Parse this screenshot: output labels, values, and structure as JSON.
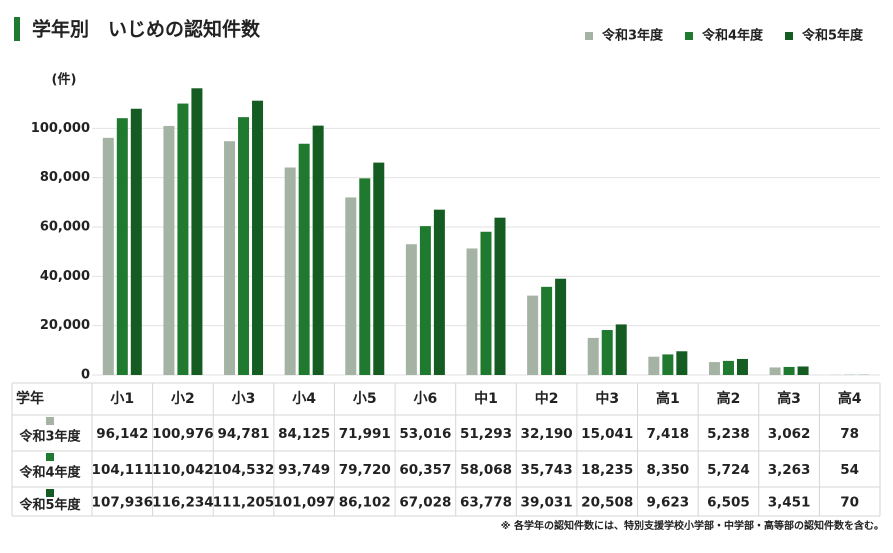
{
  "chart_data": {
    "type": "bar",
    "title": "学年別　いじめの認知件数",
    "y_unit": "(件)",
    "table_header": "学年",
    "footnote": "※ 各学年の認知件数には、特別支援学校小学部・中学部・高等部の認知件数を含む。",
    "categories": [
      "小1",
      "小2",
      "小3",
      "小4",
      "小5",
      "小6",
      "中1",
      "中2",
      "中3",
      "高1",
      "高2",
      "高3",
      "高4"
    ],
    "series": [
      {
        "name": "令和3年度",
        "color": "#a5b3a5",
        "values": [
          96142,
          100976,
          94781,
          84125,
          71991,
          53016,
          51293,
          32190,
          15041,
          7418,
          5238,
          3062,
          78
        ],
        "value_labels": [
          "96,142",
          "100,976",
          "94,781",
          "84,125",
          "71,991",
          "53,016",
          "51,293",
          "32,190",
          "15,041",
          "7,418",
          "5,238",
          "3,062",
          "78"
        ]
      },
      {
        "name": "令和4年度",
        "color": "#1f7a2f",
        "values": [
          104111,
          110042,
          104532,
          93749,
          79720,
          60357,
          58068,
          35743,
          18235,
          8350,
          5724,
          3263,
          54
        ],
        "value_labels": [
          "104,111",
          "110,042",
          "104,532",
          "93,749",
          "79,720",
          "60,357",
          "58,068",
          "35,743",
          "18,235",
          "8,350",
          "5,724",
          "3,263",
          "54"
        ]
      },
      {
        "name": "令和5年度",
        "color": "#145c21",
        "values": [
          107936,
          116234,
          111205,
          101097,
          86102,
          67028,
          63778,
          39031,
          20508,
          9623,
          6505,
          3451,
          70
        ],
        "value_labels": [
          "107,936",
          "116,234",
          "111,205",
          "101,097",
          "86,102",
          "67,028",
          "63,778",
          "39,031",
          "20,508",
          "9,623",
          "6,505",
          "3,451",
          "70"
        ]
      }
    ],
    "ylim": [
      0,
      120000
    ],
    "yticks": [
      0,
      {
        "value": 20000,
        "label": "20,000"
      },
      {
        "value": 40000,
        "label": "40,000"
      },
      {
        "value": 60000,
        "label": "60,000"
      },
      {
        "value": 80000,
        "label": "80,000"
      },
      {
        "value": 100000,
        "label": "100,000"
      }
    ],
    "grid": true
  }
}
